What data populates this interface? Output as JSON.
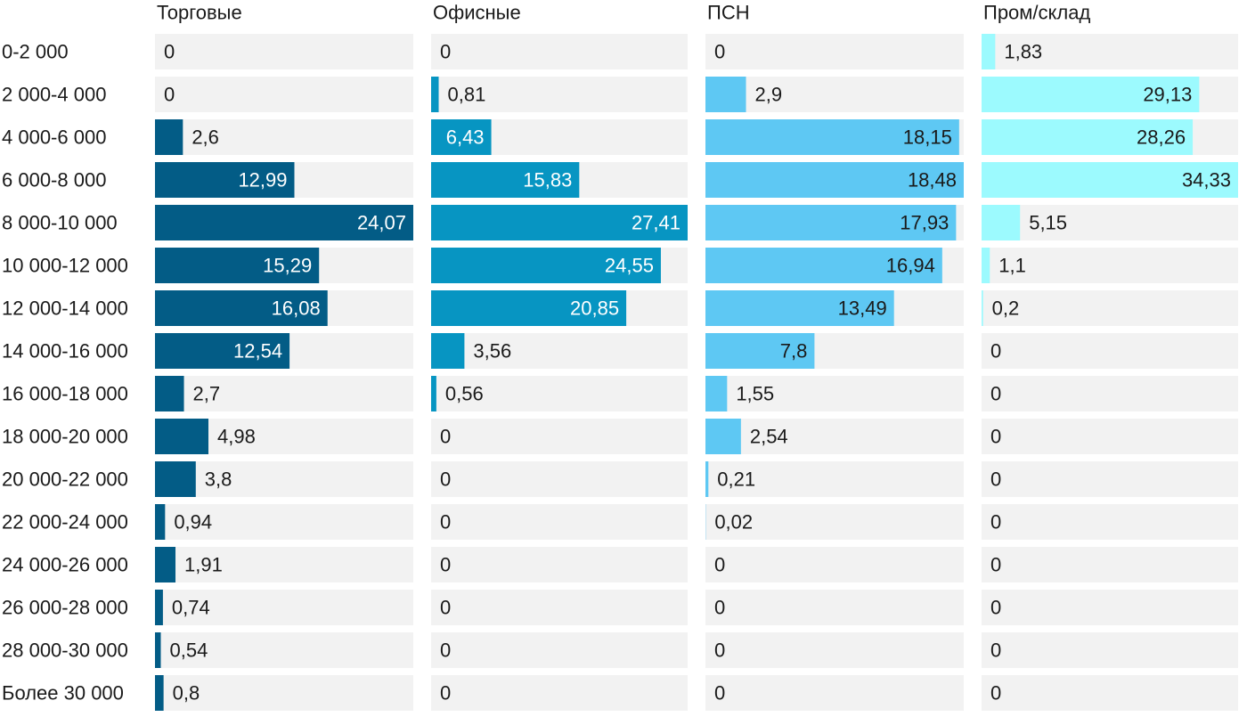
{
  "chart_data": {
    "type": "bar",
    "orientation": "horizontal",
    "layout": "small-multiples",
    "title": "",
    "xlabel": "",
    "ylabel": "",
    "categories": [
      "0-2 000",
      "2 000-4 000",
      "4 000-6 000",
      "6 000-8 000",
      "8 000-10 000",
      "10 000-12 000",
      "12 000-14 000",
      "14 000-16 000",
      "16 000-18 000",
      "18 000-20 000",
      "20 000-22 000",
      "22 000-24 000",
      "24 000-26 000",
      "26 000-28 000",
      "28 000-30 000",
      "Более 30 000"
    ],
    "series": [
      {
        "name": "Торговые",
        "color": "#035C86",
        "max": 24.07,
        "values": [
          0,
          0,
          2.6,
          12.99,
          24.07,
          15.29,
          16.08,
          12.54,
          2.7,
          4.98,
          3.8,
          0.94,
          1.91,
          0.74,
          0.54,
          0.8
        ],
        "labels": [
          "0",
          "0",
          "2,6",
          "12,99",
          "24,07",
          "15,29",
          "16,08",
          "12,54",
          "2,7",
          "4,98",
          "3,8",
          "0,94",
          "1,91",
          "0,74",
          "0,54",
          "0,8"
        ]
      },
      {
        "name": "Офисные",
        "color": "#0795C2",
        "max": 27.41,
        "values": [
          0,
          0.81,
          6.43,
          15.83,
          27.41,
          24.55,
          20.85,
          3.56,
          0.56,
          0,
          0,
          0,
          0,
          0,
          0,
          0
        ],
        "labels": [
          "0",
          "0,81",
          "6,43",
          "15,83",
          "27,41",
          "24,55",
          "20,85",
          "3,56",
          "0,56",
          "0",
          "0",
          "0",
          "0",
          "0",
          "0",
          "0"
        ]
      },
      {
        "name": "ПСН",
        "color": "#5EC8F3",
        "max": 18.48,
        "values": [
          0,
          2.9,
          18.15,
          18.48,
          17.93,
          16.94,
          13.49,
          7.8,
          1.55,
          2.54,
          0.21,
          0.02,
          0,
          0,
          0,
          0
        ],
        "labels": [
          "0",
          "2,9",
          "18,15",
          "18,48",
          "17,93",
          "16,94",
          "13,49",
          "7,8",
          "1,55",
          "2,54",
          "0,21",
          "0,02",
          "0",
          "0",
          "0",
          "0"
        ]
      },
      {
        "name": "Пром/склад",
        "color": "#9CFAFE",
        "max": 34.33,
        "values": [
          1.83,
          29.13,
          28.26,
          34.33,
          5.15,
          1.1,
          0.2,
          0,
          0,
          0,
          0,
          0,
          0,
          0,
          0,
          0
        ],
        "labels": [
          "1,83",
          "29,13",
          "28,26",
          "34,33",
          "5,15",
          "1,1",
          "0,2",
          "0",
          "0",
          "0",
          "0",
          "0",
          "0",
          "0",
          "0",
          "0"
        ]
      }
    ],
    "track_color": "#F2F2F2",
    "grid": false,
    "legend": "none"
  }
}
